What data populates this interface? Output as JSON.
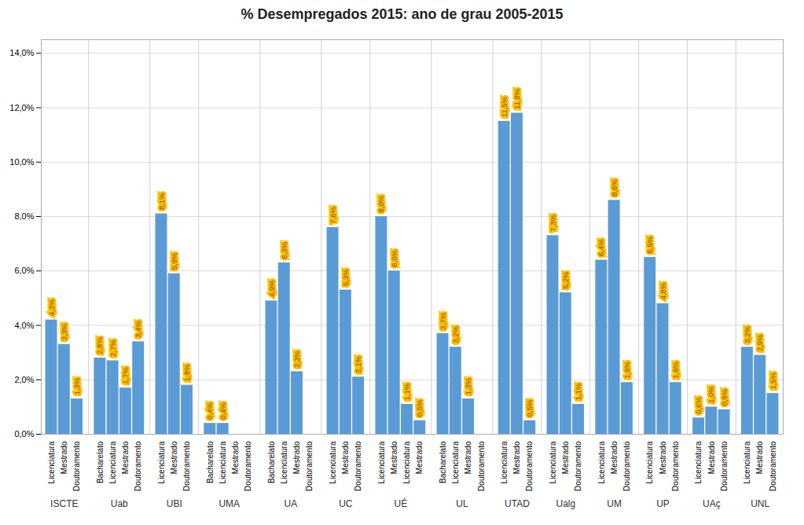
{
  "chart_data": {
    "type": "bar",
    "title": "% Desempregados 2015: ano de grau 2005-2015",
    "color": "#5B9BD5",
    "ylim": [
      0,
      0.145
    ],
    "yticks": [
      {
        "value": 0.0,
        "label": "0,0%"
      },
      {
        "value": 0.02,
        "label": "2,0%"
      },
      {
        "value": 0.04,
        "label": "4,0%"
      },
      {
        "value": 0.06,
        "label": "6,0%"
      },
      {
        "value": 0.08,
        "label": "8,0%"
      },
      {
        "value": 0.1,
        "label": "10,0%"
      },
      {
        "value": 0.12,
        "label": "12,0%"
      },
      {
        "value": 0.14,
        "label": "14,0%"
      }
    ],
    "grid": true,
    "data_labels": true,
    "groups": [
      {
        "name": "ISCTE",
        "categories": [
          "Licenciatura",
          "Mestrado",
          "Doutoramento"
        ],
        "values": [
          0.042,
          0.033,
          0.013
        ],
        "value_labels": [
          "4,2%",
          "3,3%",
          "1,3%"
        ]
      },
      {
        "name": "Uab",
        "categories": [
          "Bacharelato",
          "Licenciatura",
          "Mestrado",
          "Doutoramento"
        ],
        "values": [
          0.028,
          0.027,
          0.017,
          0.034
        ],
        "value_labels": [
          "2,8%",
          "2,7%",
          "1,7%",
          "3,4%"
        ]
      },
      {
        "name": "UBI",
        "categories": [
          "Licenciatura",
          "Mestrado",
          "Doutoramento"
        ],
        "values": [
          0.081,
          0.059,
          0.018
        ],
        "value_labels": [
          "8,1%",
          "5,9%",
          "1,8%"
        ]
      },
      {
        "name": "UMA",
        "categories": [
          "Bacharelato",
          "Licenciatura",
          "Mestrado",
          "Doutoramento"
        ],
        "values": [
          0.004,
          0.004,
          0.0,
          0.0
        ],
        "value_labels": [
          "0,4%",
          "0,4%",
          null,
          null
        ]
      },
      {
        "name": "UA",
        "categories": [
          "Bacharelato",
          "Licenciatura",
          "Mestrado",
          "Doutoramento"
        ],
        "values": [
          0.049,
          0.063,
          0.023,
          0.0
        ],
        "value_labels": [
          "4,9%",
          "6,3%",
          "2,3%",
          null
        ]
      },
      {
        "name": "UC",
        "categories": [
          "Licenciatura",
          "Mestrado",
          "Doutoramento"
        ],
        "values": [
          0.076,
          0.053,
          0.021
        ],
        "value_labels": [
          "7,6%",
          "5,3%",
          "2,1%"
        ]
      },
      {
        "name": "UÉ",
        "categories": [
          "Licenciatura",
          "Mestrado",
          "Licenciatura",
          "Mestrado"
        ],
        "values": [
          0.08,
          0.06,
          0.011,
          0.005
        ],
        "value_labels": [
          "8,0%",
          "6,0%",
          "1,1%",
          "0,5%"
        ]
      },
      {
        "name": "UL",
        "categories": [
          "Bacharelato",
          "Licenciatura",
          "Mestrado",
          "Doutoramento"
        ],
        "values": [
          0.037,
          0.032,
          0.013,
          0.0
        ],
        "value_labels": [
          "3,7%",
          "3,2%",
          "1,3%",
          null
        ]
      },
      {
        "name": "UTAD",
        "categories": [
          "Licenciatura",
          "Mestrado",
          "Doutoramento"
        ],
        "values": [
          0.115,
          0.118,
          0.005
        ],
        "value_labels": [
          "11,5%",
          "11,8%",
          "0,5%"
        ]
      },
      {
        "name": "Ualg",
        "categories": [
          "Licenciatura",
          "Mestrado",
          "Doutoramento"
        ],
        "values": [
          0.073,
          0.052,
          0.011
        ],
        "value_labels": [
          "7,3%",
          "5,2%",
          "1,1%"
        ]
      },
      {
        "name": "UM",
        "categories": [
          "Licenciatura",
          "Mestrado",
          "Doutoramento"
        ],
        "values": [
          0.064,
          0.086,
          0.019
        ],
        "value_labels": [
          "6,4%",
          "8,6%",
          "1,9%"
        ]
      },
      {
        "name": "UP",
        "categories": [
          "Licenciatura",
          "Mestrado",
          "Doutoramento"
        ],
        "values": [
          0.065,
          0.048,
          0.019
        ],
        "value_labels": [
          "6,5%",
          "4,8%",
          "1,9%"
        ]
      },
      {
        "name": "UAç",
        "categories": [
          "Licenciatura",
          "Mestrado",
          "Doutoramento"
        ],
        "values": [
          0.006,
          0.01,
          0.009
        ],
        "value_labels": [
          "0,6%",
          "1,0%",
          "0,9%"
        ]
      },
      {
        "name": "UNL",
        "categories": [
          "Licenciatura",
          "Mestrado",
          "Doutoramento"
        ],
        "values": [
          0.032,
          0.029,
          0.015
        ],
        "value_labels": [
          "3,2%",
          "2,9%",
          "1,5%"
        ]
      }
    ]
  }
}
